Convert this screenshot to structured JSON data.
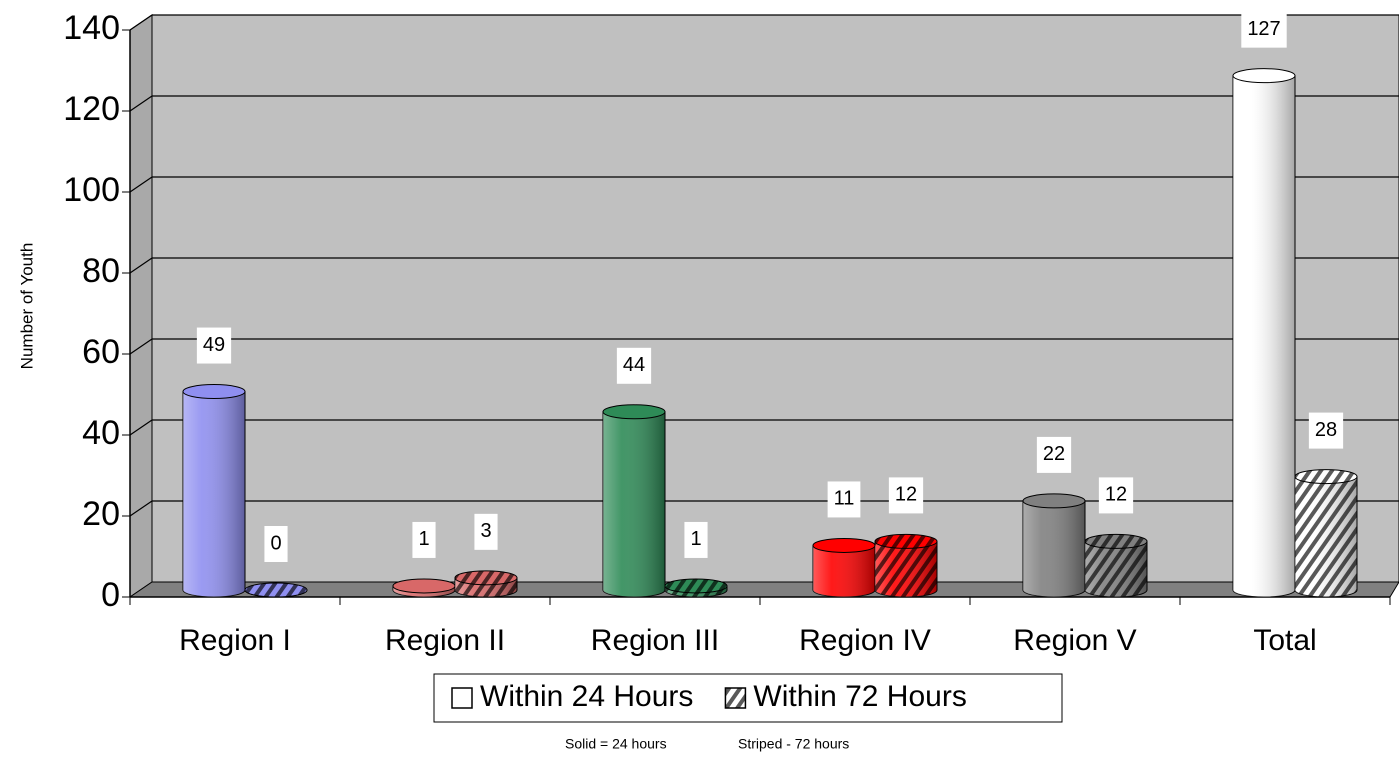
{
  "chart_data": {
    "type": "bar3d",
    "y_axis_label": "Number of Youth",
    "categories": [
      "Region I",
      "Region II",
      "Region III",
      "Region IV",
      "Region V",
      "Total"
    ],
    "category_colors": [
      "#8f8ff0",
      "#d86868",
      "#2e8b57",
      "#ff0000",
      "#808080",
      "#ffffff"
    ],
    "series": [
      {
        "name": "Within 24 Hours",
        "color": "#ffffff",
        "striped": false,
        "values": [
          49,
          1,
          44,
          11,
          22,
          127
        ]
      },
      {
        "name": "Within 72 Hours",
        "color": "#000000",
        "striped": true,
        "values": [
          0,
          3,
          1,
          12,
          12,
          28
        ]
      }
    ],
    "ylim": [
      0,
      140
    ],
    "yticks": [
      0,
      20,
      40,
      60,
      80,
      100,
      120,
      140
    ],
    "grid": true,
    "legend": "bottom",
    "annotations": [
      "Solid = 24 hours",
      "Striped - 72 hours"
    ]
  }
}
